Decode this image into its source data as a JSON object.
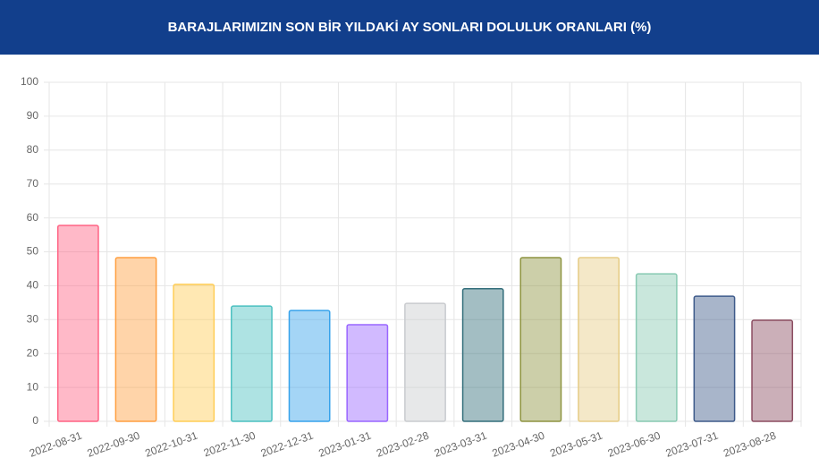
{
  "chart_data": {
    "type": "bar",
    "title": "BARAJLARIMIZIN SON BİR YILDAKİ AY SONLARI DOLULUK ORANLARI (%)",
    "categories": [
      "2022-08-31",
      "2022-09-30",
      "2022-10-31",
      "2022-11-30",
      "2022-12-31",
      "2023-01-31",
      "2023-02-28",
      "2023-03-31",
      "2023-04-30",
      "2023-05-31",
      "2023-06-30",
      "2023-07-31",
      "2023-08-28"
    ],
    "values": [
      57.8,
      48.3,
      40.4,
      34.0,
      32.7,
      28.5,
      34.8,
      39.1,
      48.3,
      48.3,
      43.5,
      36.9,
      29.8
    ],
    "colors": [
      "#ff6384",
      "#ff9f40",
      "#ffcd56",
      "#4bc0c0",
      "#36a2eb",
      "#9966ff",
      "#c9cbcf",
      "#336e7b",
      "#8d9440",
      "#e6cc85",
      "#88c9b2",
      "#3e5a8a",
      "#8c4d61"
    ],
    "ylim": [
      0,
      100
    ],
    "yticks": [
      0,
      10,
      20,
      30,
      40,
      50,
      60,
      70,
      80,
      90,
      100
    ],
    "grid": true
  }
}
